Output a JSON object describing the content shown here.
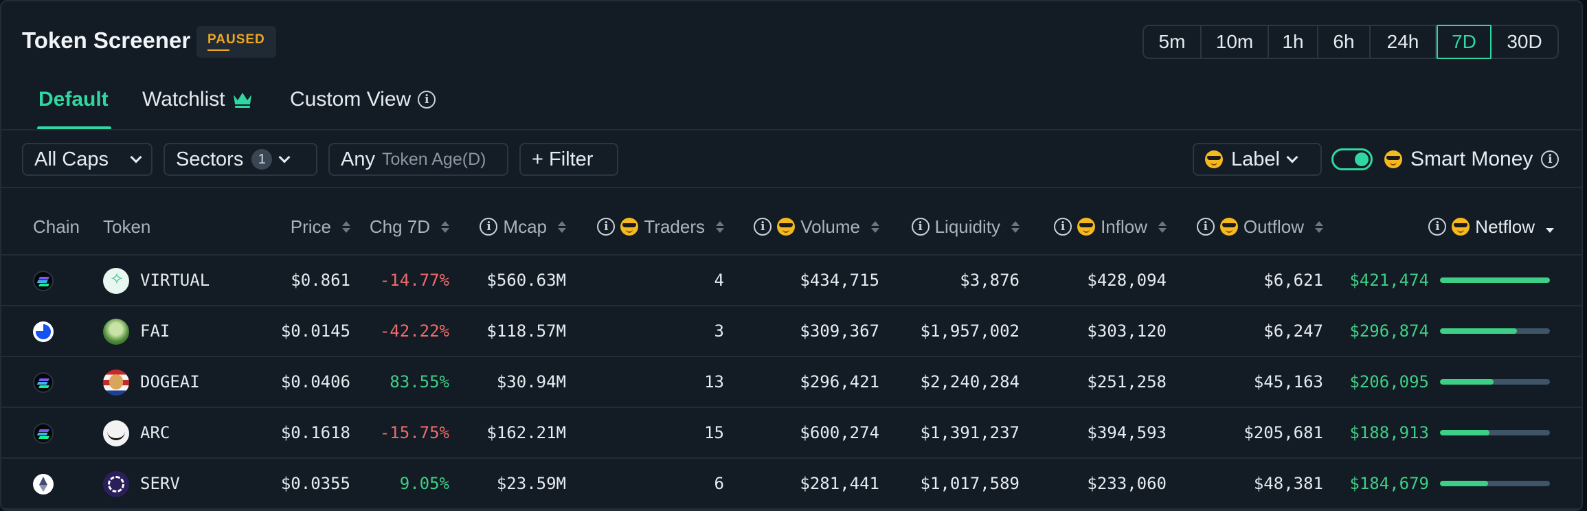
{
  "header": {
    "title": "Token Screener",
    "status_badge": "PAUSED",
    "time_ranges": [
      "5m",
      "10m",
      "1h",
      "6h",
      "24h",
      "7D",
      "30D"
    ],
    "active_time_range": "7D"
  },
  "tabs": {
    "default": "Default",
    "watchlist": "Watchlist",
    "custom_view": "Custom View",
    "active": "Default"
  },
  "filters": {
    "caps": "All Caps",
    "sectors": "Sectors",
    "sectors_count": "1",
    "token_age_value": "Any",
    "token_age_label": "Token Age(D)",
    "add_filter": "+ Filter",
    "label": "Label",
    "smart_money": "Smart Money",
    "smart_money_enabled": true
  },
  "table": {
    "columns": {
      "chain": "Chain",
      "token": "Token",
      "price": "Price",
      "change": "Chg 7D",
      "mcap": "Mcap",
      "traders": "Traders",
      "volume": "Volume",
      "liquidity": "Liquidity",
      "inflow": "Inflow",
      "outflow": "Outflow",
      "netflow": "Netflow"
    },
    "rows": [
      {
        "chain": "solana",
        "token": "VIRTUAL",
        "icon": "virtual",
        "price": "$0.861",
        "change": "-14.77%",
        "change_dir": "neg",
        "mcap": "$560.63M",
        "traders": "4",
        "volume": "$434,715",
        "liquidity": "$3,876",
        "inflow": "$428,094",
        "outflow": "$6,621",
        "netflow": "$421,474",
        "netflow_share": 1.0
      },
      {
        "chain": "base",
        "token": "FAI",
        "icon": "fai",
        "price": "$0.0145",
        "change": "-42.22%",
        "change_dir": "neg",
        "mcap": "$118.57M",
        "traders": "3",
        "volume": "$309,367",
        "liquidity": "$1,957,002",
        "inflow": "$303,120",
        "outflow": "$6,247",
        "netflow": "$296,874",
        "netflow_share": 0.7
      },
      {
        "chain": "solana",
        "token": "DOGEAI",
        "icon": "dogeai",
        "price": "$0.0406",
        "change": "83.55%",
        "change_dir": "pos",
        "mcap": "$30.94M",
        "traders": "13",
        "volume": "$296,421",
        "liquidity": "$2,240,284",
        "inflow": "$251,258",
        "outflow": "$45,163",
        "netflow": "$206,095",
        "netflow_share": 0.49
      },
      {
        "chain": "solana",
        "token": "ARC",
        "icon": "arc",
        "price": "$0.1618",
        "change": "-15.75%",
        "change_dir": "neg",
        "mcap": "$162.21M",
        "traders": "15",
        "volume": "$600,274",
        "liquidity": "$1,391,237",
        "inflow": "$394,593",
        "outflow": "$205,681",
        "netflow": "$188,913",
        "netflow_share": 0.45
      },
      {
        "chain": "ethereum",
        "token": "SERV",
        "icon": "serv",
        "price": "$0.0355",
        "change": "9.05%",
        "change_dir": "pos",
        "mcap": "$23.59M",
        "traders": "6",
        "volume": "$281,441",
        "liquidity": "$1,017,589",
        "inflow": "$233,060",
        "outflow": "$48,381",
        "netflow": "$184,679",
        "netflow_share": 0.44
      }
    ]
  },
  "colors": {
    "accent": "#2fd8a0",
    "positive": "#3ecf86",
    "negative": "#ef6b6b",
    "paused": "#f0a81e"
  }
}
